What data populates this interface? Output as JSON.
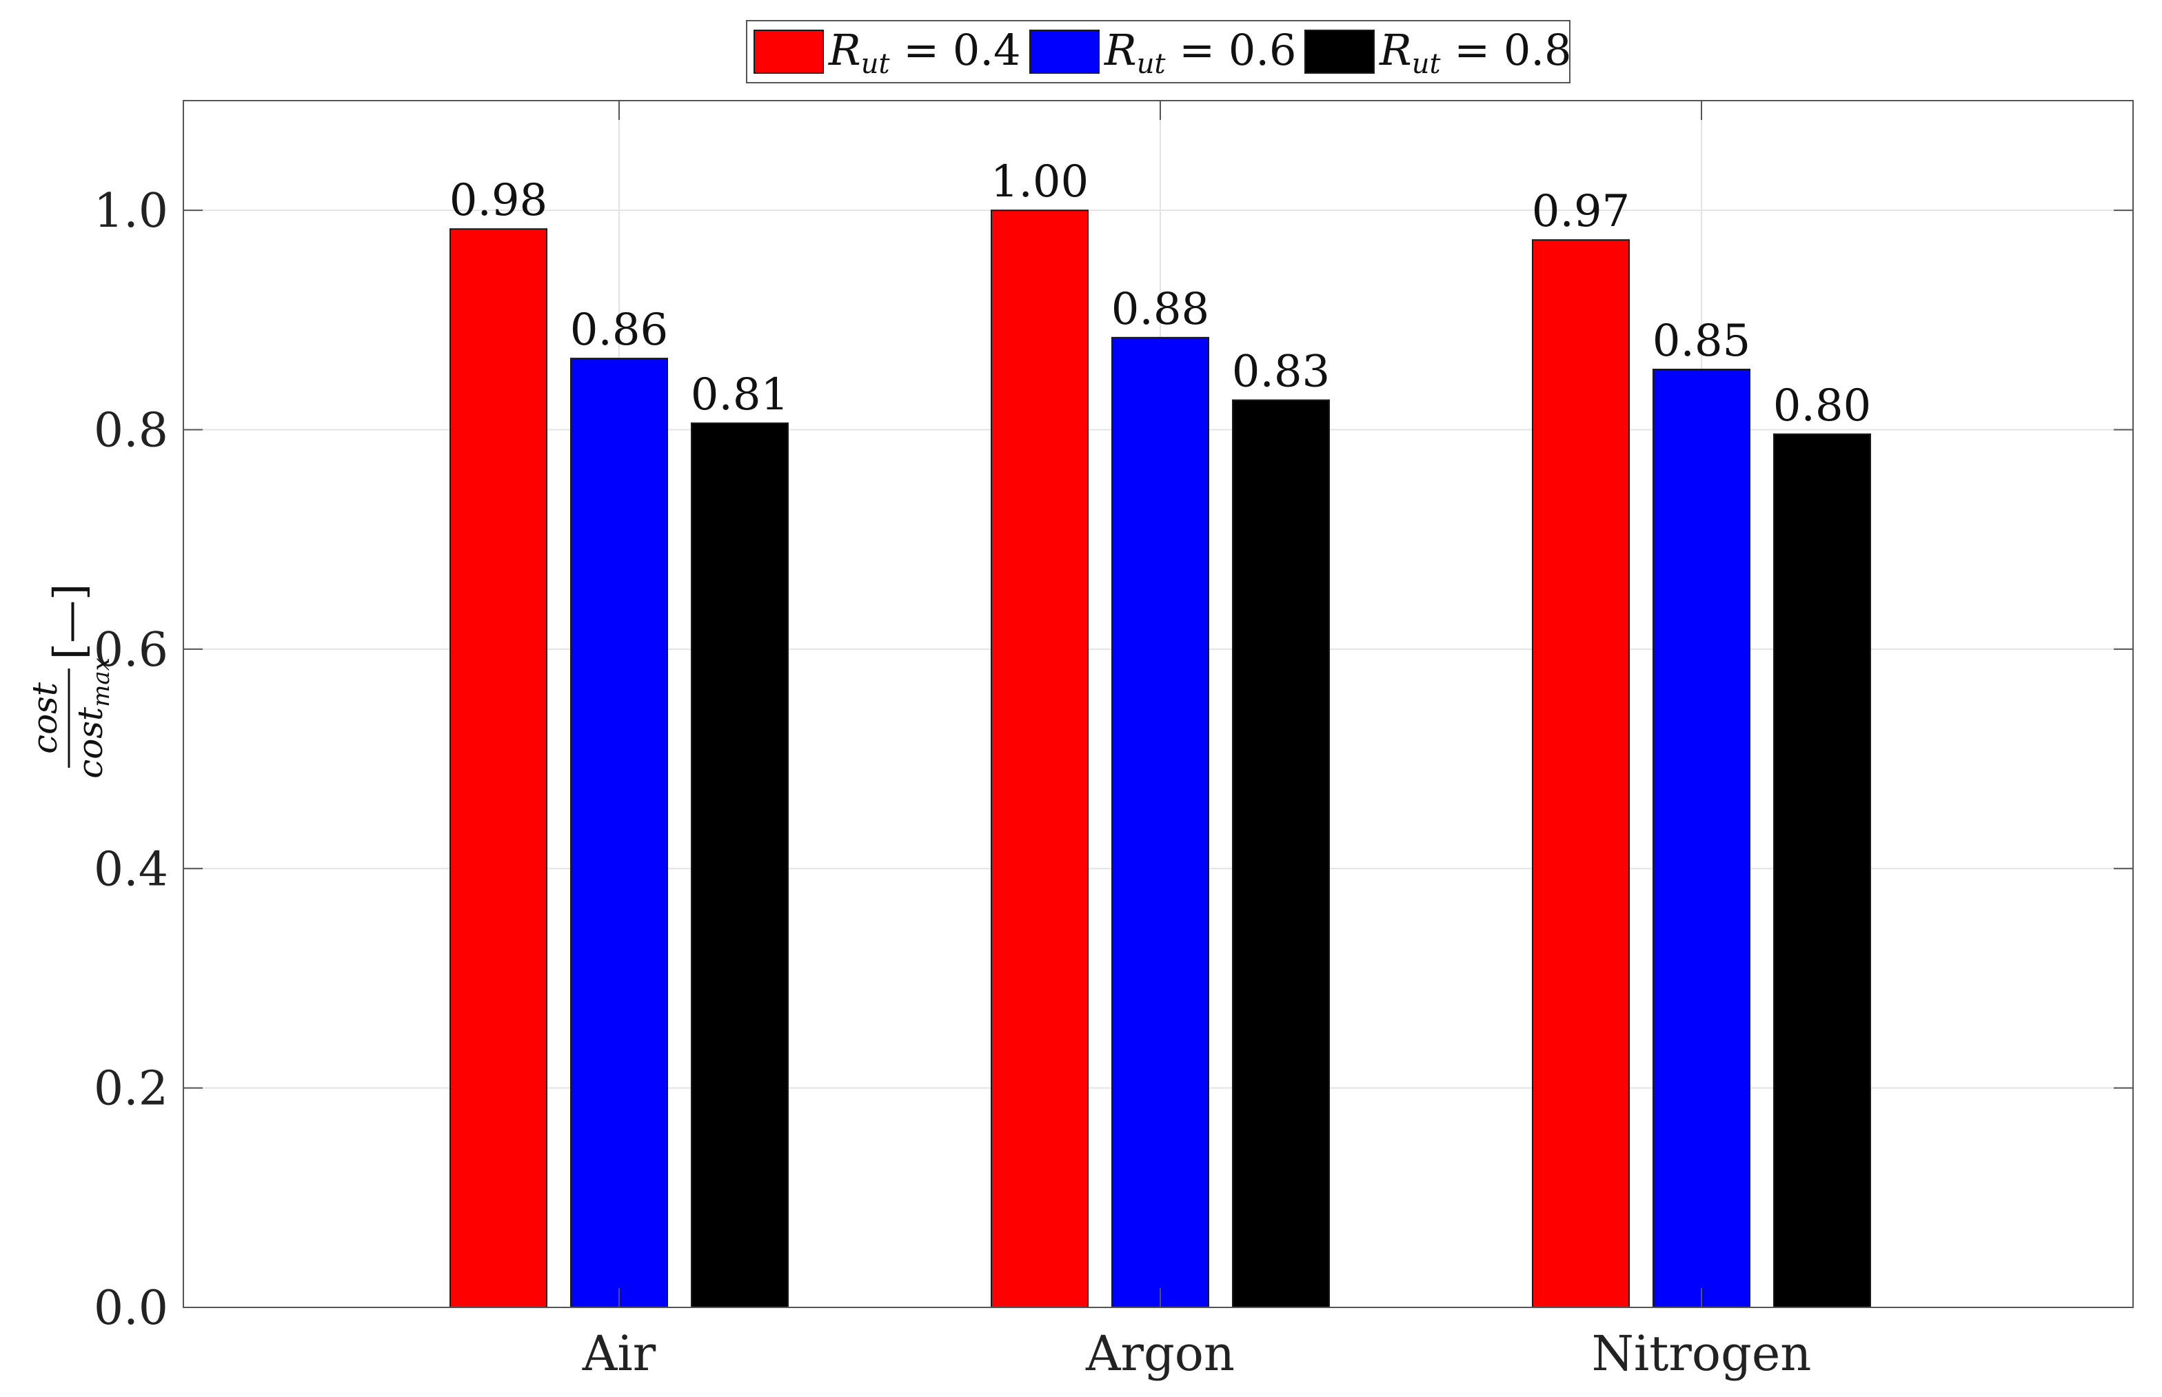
{
  "chart_data": {
    "type": "bar",
    "categories": [
      "Air",
      "Argon",
      "Nitrogen"
    ],
    "series": [
      {
        "name": "R_ut = 0.4",
        "legend_sym": "R",
        "legend_sub": "ut",
        "legend_eq": " = 0.4",
        "color": "#ff0000",
        "values": [
          0.983,
          1.0,
          0.973
        ],
        "labels": [
          "0.98",
          "1.00",
          "0.97"
        ]
      },
      {
        "name": "R_ut = 0.6",
        "legend_sym": "R",
        "legend_sub": "ut",
        "legend_eq": " = 0.6",
        "color": "#0000ff",
        "values": [
          0.865,
          0.884,
          0.855
        ],
        "labels": [
          "0.86",
          "0.88",
          "0.85"
        ]
      },
      {
        "name": "R_ut = 0.8",
        "legend_sym": "R",
        "legend_sub": "ut",
        "legend_eq": " = 0.8",
        "color": "#000000",
        "values": [
          0.806,
          0.827,
          0.796
        ],
        "labels": [
          "0.81",
          "0.83",
          "0.80"
        ]
      }
    ],
    "ylim": [
      0,
      1.1
    ],
    "yticks": [
      0.0,
      0.2,
      0.4,
      0.6,
      0.8,
      1.0
    ],
    "ytick_labels": [
      "0.0",
      "0.2",
      "0.4",
      "0.6",
      "0.8",
      "1.0"
    ],
    "ylabel": {
      "numerator": "cost",
      "denominator": "cost",
      "denominator_sub": "max",
      "unit": "[—]"
    },
    "xlabel": "",
    "title": "",
    "grid": true,
    "legend_position": "top-center"
  }
}
